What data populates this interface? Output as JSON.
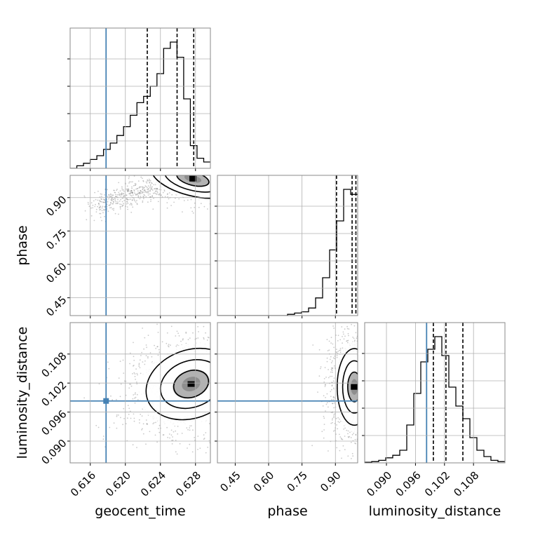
{
  "chart_data": {
    "type": "corner",
    "parameters": [
      "geocent_time",
      "phase",
      "luminosity_distance"
    ],
    "axis_labels": {
      "geocent_time": "geocent_time",
      "phase": "phase",
      "luminosity_distance": "luminosity_distance"
    },
    "ranges": {
      "geocent_time": [
        0.6137,
        0.6297
      ],
      "phase": [
        0.37,
        1.0
      ],
      "luminosity_distance": [
        0.0855,
        0.1145
      ]
    },
    "ticks": {
      "geocent_time": [
        "0.616",
        "0.620",
        "0.624",
        "0.628"
      ],
      "phase": [
        "0.45",
        "0.60",
        "0.75",
        "0.90"
      ],
      "luminosity_distance": [
        "0.090",
        "0.096",
        "0.102",
        "0.108"
      ]
    },
    "truth": {
      "geocent_time": 0.6178,
      "luminosity_distance": 0.0983,
      "color": "#4682b4"
    },
    "quantiles": {
      "geocent_time": [
        0.6225,
        0.6259,
        0.6278
      ],
      "phase": [
        0.905,
        0.975,
        0.992
      ],
      "luminosity_distance": [
        0.0997,
        0.1023,
        0.1058
      ]
    },
    "histograms": {
      "geocent_time": [
        0,
        0.02,
        0.04,
        0.07,
        0.1,
        0.15,
        0.2,
        0.26,
        0.33,
        0.42,
        0.52,
        0.57,
        0.65,
        0.75,
        0.95,
        1.0,
        0.88,
        0.55,
        0.18,
        0.08,
        0.05
      ],
      "phase": [
        0,
        0,
        0,
        0,
        0,
        0,
        0,
        0,
        0,
        0,
        0.01,
        0.02,
        0.03,
        0.06,
        0.14,
        0.3,
        0.52,
        0.75,
        1.0,
        0.96
      ],
      "luminosity_distance": [
        0.005,
        0.01,
        0.02,
        0.04,
        0.06,
        0.1,
        0.3,
        0.55,
        0.8,
        0.9,
        1.0,
        0.85,
        0.6,
        0.45,
        0.35,
        0.2,
        0.1,
        0.05,
        0.02,
        0.01
      ]
    },
    "density_peak": {
      "geocent_time_vs_phase": {
        "x": 0.6277,
        "y": 0.985
      },
      "geocent_time_vs_luminosity_distance": {
        "x": 0.6275,
        "y": 0.1018
      },
      "phase_vs_luminosity_distance": {
        "x": 0.985,
        "y": 0.1012
      }
    },
    "grid": true,
    "line_color": "#000000"
  }
}
